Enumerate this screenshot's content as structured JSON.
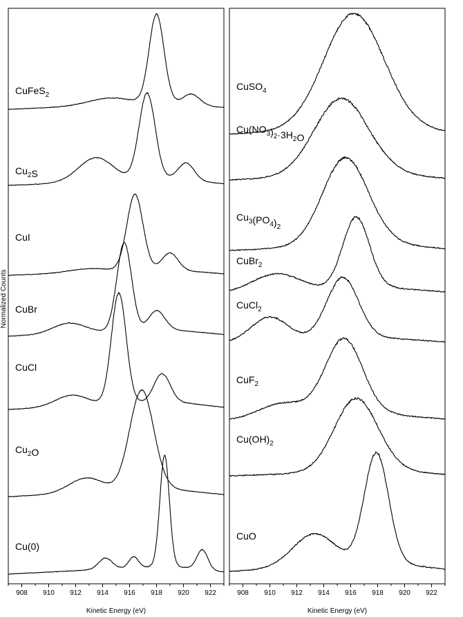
{
  "chart_data": [
    {
      "type": "line",
      "panel": "left",
      "xlabel": "Kinetic Energy (eV)",
      "ylabel": "Normalized Counts",
      "xlim": [
        907,
        923
      ],
      "xticks": [
        908,
        910,
        912,
        914,
        916,
        918,
        920,
        922
      ],
      "series": [
        {
          "name": "CuFeS2",
          "label_parts": [
            [
              "CuFeS",
              ""
            ],
            [
              "2",
              "sub"
            ]
          ],
          "peaks": [
            [
              918.0,
              1.0,
              0.55
            ],
            [
              920.6,
              0.12,
              0.6
            ],
            [
              914.5,
              0.08,
              1.6
            ]
          ],
          "baseline": 0.0
        },
        {
          "name": "Cu2S",
          "label_parts": [
            [
              "Cu",
              ""
            ],
            [
              "2",
              "sub"
            ],
            [
              "S",
              ""
            ]
          ],
          "peaks": [
            [
              917.3,
              1.0,
              0.6
            ],
            [
              920.2,
              0.2,
              0.6
            ],
            [
              913.5,
              0.28,
              1.3
            ]
          ],
          "baseline": 0.0
        },
        {
          "name": "CuI",
          "label_parts": [
            [
              "CuI",
              ""
            ]
          ],
          "peaks": [
            [
              916.4,
              1.0,
              0.6
            ],
            [
              919.0,
              0.22,
              0.6
            ],
            [
              913.0,
              0.05,
              1.5
            ]
          ],
          "baseline": 0.0
        },
        {
          "name": "CuBr",
          "label_parts": [
            [
              "CuBr",
              ""
            ]
          ],
          "peaks": [
            [
              915.6,
              1.0,
              0.55
            ],
            [
              918.0,
              0.22,
              0.6
            ],
            [
              911.5,
              0.12,
              1.2
            ]
          ],
          "baseline": 0.0
        },
        {
          "name": "CuCl",
          "label_parts": [
            [
              "CuCl",
              ""
            ]
          ],
          "peaks": [
            [
              915.2,
              1.0,
              0.55
            ],
            [
              918.4,
              0.25,
              0.6
            ],
            [
              911.7,
              0.1,
              1.2
            ]
          ],
          "baseline": 0.0
        },
        {
          "name": "Cu2O",
          "label_parts": [
            [
              "Cu",
              ""
            ],
            [
              "2",
              "sub"
            ],
            [
              "O",
              ""
            ]
          ],
          "peaks": [
            [
              916.9,
              1.0,
              0.9
            ],
            [
              912.8,
              0.15,
              1.3
            ]
          ],
          "baseline": 0.0
        },
        {
          "name": "Cu(0)",
          "label_parts": [
            [
              "Cu(0)",
              ""
            ]
          ],
          "peaks": [
            [
              918.6,
              1.0,
              0.35
            ],
            [
              921.4,
              0.18,
              0.4
            ],
            [
              916.3,
              0.1,
              0.35
            ],
            [
              914.2,
              0.1,
              0.5
            ]
          ],
          "baseline": 0.0
        }
      ]
    },
    {
      "type": "line",
      "panel": "right",
      "xlabel": "Kinetic Energy (eV)",
      "xlim": [
        907,
        923
      ],
      "xticks": [
        908,
        910,
        912,
        914,
        916,
        918,
        920,
        922
      ],
      "series": [
        {
          "name": "CuSO4",
          "label_parts": [
            [
              "CuSO",
              ""
            ],
            [
              "4",
              "sub"
            ]
          ],
          "peaks": [
            [
              916.2,
              1.0,
              2.2
            ]
          ],
          "baseline": 0.0
        },
        {
          "name": "Cu(NO3)2·3H2O",
          "label_parts": [
            [
              "Cu(NO",
              ""
            ],
            [
              "3",
              "sub"
            ],
            [
              ")",
              ""
            ],
            [
              "2",
              "sub"
            ],
            [
              "·3H",
              ""
            ],
            [
              "2",
              "sub"
            ],
            [
              "O",
              ""
            ]
          ],
          "peaks": [
            [
              915.3,
              1.0,
              2.0
            ]
          ],
          "baseline": 0.0
        },
        {
          "name": "Cu3(PO4)2",
          "label_parts": [
            [
              "Cu",
              ""
            ],
            [
              "3",
              "sub"
            ],
            [
              "(PO",
              ""
            ],
            [
              "4",
              "sub"
            ],
            [
              ")",
              ""
            ],
            [
              "2",
              "sub"
            ]
          ],
          "peaks": [
            [
              915.6,
              1.0,
              1.7
            ]
          ],
          "baseline": 0.0
        },
        {
          "name": "CuBr2",
          "label_parts": [
            [
              "CuBr",
              ""
            ],
            [
              "2",
              "sub"
            ]
          ],
          "peaks": [
            [
              916.4,
              1.0,
              1.0
            ],
            [
              910.5,
              0.25,
              1.8
            ]
          ],
          "baseline": 0.0
        },
        {
          "name": "CuCl2",
          "label_parts": [
            [
              "CuCl",
              ""
            ],
            [
              "2",
              "sub"
            ]
          ],
          "peaks": [
            [
              915.4,
              1.0,
              1.2
            ],
            [
              910.0,
              0.4,
              1.4
            ]
          ],
          "baseline": 0.0
        },
        {
          "name": "CuF2",
          "label_parts": [
            [
              "CuF",
              ""
            ],
            [
              "2",
              "sub"
            ]
          ],
          "peaks": [
            [
              915.5,
              1.0,
              1.4
            ],
            [
              911.0,
              0.2,
              1.8
            ]
          ],
          "baseline": 0.0
        },
        {
          "name": "Cu(OH)2",
          "label_parts": [
            [
              "Cu(OH)",
              ""
            ],
            [
              "2",
              "sub"
            ]
          ],
          "peaks": [
            [
              916.4,
              1.0,
              1.6
            ]
          ],
          "baseline": 0.0
        },
        {
          "name": "CuO",
          "label_parts": [
            [
              "CuO",
              ""
            ]
          ],
          "peaks": [
            [
              917.9,
              1.0,
              0.9
            ],
            [
              913.3,
              0.3,
              1.6
            ]
          ],
          "baseline": 0.0
        }
      ]
    }
  ]
}
